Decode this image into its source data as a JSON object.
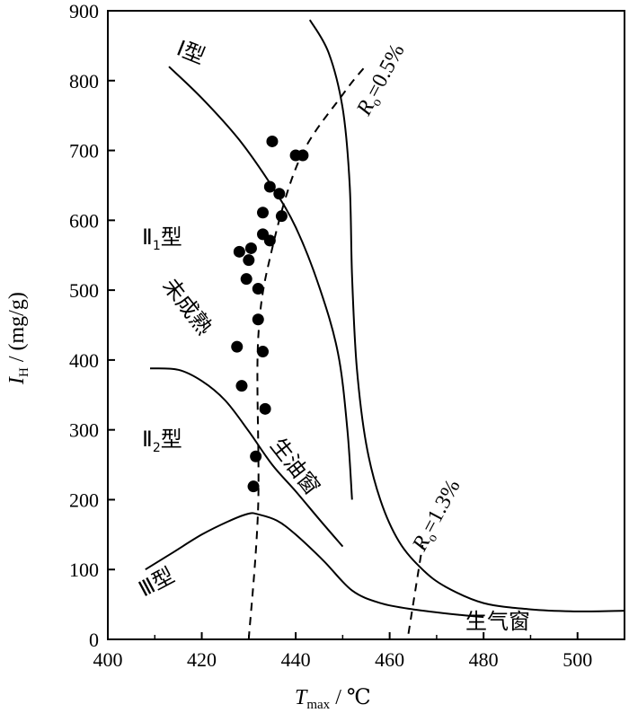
{
  "chart_data": {
    "type": "scatter",
    "title": "",
    "xlabel": {
      "symbol": "T",
      "subscript": "max",
      "unit": " / ℃"
    },
    "ylabel": {
      "symbol": "I",
      "subscript": "H",
      "unit": " / (mg/g)"
    },
    "xlim": [
      400,
      510
    ],
    "ylim": [
      0,
      900
    ],
    "x_ticks": [
      "400",
      "420",
      "440",
      "460",
      "480",
      "500"
    ],
    "y_ticks": [
      "0",
      "100",
      "200",
      "300",
      "400",
      "500",
      "600",
      "700",
      "800",
      "900"
    ],
    "grid": false,
    "series": [
      {
        "marker": "filled-circle",
        "points": [
          {
            "x": 435,
            "y": 713
          },
          {
            "x": 440,
            "y": 693
          },
          {
            "x": 441.5,
            "y": 693
          },
          {
            "x": 434.5,
            "y": 648
          },
          {
            "x": 436.5,
            "y": 638
          },
          {
            "x": 433,
            "y": 611
          },
          {
            "x": 437,
            "y": 606
          },
          {
            "x": 433,
            "y": 580
          },
          {
            "x": 434.5,
            "y": 571
          },
          {
            "x": 430.5,
            "y": 560
          },
          {
            "x": 428,
            "y": 555
          },
          {
            "x": 430,
            "y": 543
          },
          {
            "x": 429.5,
            "y": 516
          },
          {
            "x": 432,
            "y": 502
          },
          {
            "x": 432,
            "y": 458
          },
          {
            "x": 427.5,
            "y": 419
          },
          {
            "x": 433,
            "y": 412
          },
          {
            "x": 428.5,
            "y": 363
          },
          {
            "x": 433.5,
            "y": 330
          },
          {
            "x": 431.5,
            "y": 262
          },
          {
            "x": 431,
            "y": 219
          }
        ]
      }
    ],
    "type_boundaries": [
      {
        "name": "I-upper",
        "points": [
          [
            413,
            820
          ],
          [
            420,
            775
          ],
          [
            428,
            715
          ],
          [
            435,
            648
          ],
          [
            440,
            590
          ],
          [
            445,
            505
          ],
          [
            449,
            410
          ],
          [
            451,
            300
          ],
          [
            452,
            200
          ]
        ]
      },
      {
        "name": "I-II1-II2",
        "points": [
          [
            409,
            388
          ],
          [
            415,
            386
          ],
          [
            420,
            370
          ],
          [
            425,
            342
          ],
          [
            430,
            298
          ],
          [
            435,
            250
          ],
          [
            440,
            212
          ],
          [
            445,
            172
          ],
          [
            450,
            133
          ]
        ]
      },
      {
        "name": "III",
        "points": [
          [
            408,
            100
          ],
          [
            414,
            125
          ],
          [
            420,
            150
          ],
          [
            426,
            170
          ],
          [
            430,
            180
          ],
          [
            432,
            179
          ],
          [
            436,
            170
          ],
          [
            440,
            150
          ],
          [
            446,
            112
          ],
          [
            452,
            70
          ],
          [
            458,
            52
          ],
          [
            465,
            43
          ],
          [
            475,
            35
          ],
          [
            480,
            32
          ]
        ]
      },
      {
        "name": "oil-window-right",
        "points": [
          [
            443,
            887
          ],
          [
            447,
            840
          ],
          [
            450,
            760
          ],
          [
            451.5,
            650
          ],
          [
            452,
            520
          ],
          [
            453,
            390
          ],
          [
            455,
            280
          ],
          [
            458,
            200
          ],
          [
            462,
            140
          ],
          [
            467,
            100
          ],
          [
            472,
            75
          ],
          [
            480,
            52
          ],
          [
            490,
            43
          ],
          [
            500,
            40
          ],
          [
            510,
            41
          ]
        ]
      }
    ],
    "maturity_lines": [
      {
        "label_symbol": "R",
        "label_subscript": "o",
        "label_value": "=0.5%",
        "points": [
          [
            430,
            0
          ],
          [
            432,
            190
          ],
          [
            432,
            430
          ],
          [
            435,
            560
          ],
          [
            441,
            690
          ],
          [
            450,
            780
          ],
          [
            455,
            822
          ]
        ]
      },
      {
        "label_symbol": "R",
        "label_subscript": "o",
        "label_value": "=1.3%",
        "points": [
          [
            464,
            8
          ],
          [
            467,
            135
          ]
        ]
      }
    ],
    "annotations": {
      "type_I": {
        "main": "Ⅰ型"
      },
      "type_II1": {
        "main": "Ⅱ",
        "sub": "1",
        "suffix": "型"
      },
      "type_II2": {
        "main": "Ⅱ",
        "sub": "2",
        "suffix": "型"
      },
      "type_III": {
        "main": "Ⅲ型"
      },
      "immature": "未成熟",
      "oil_window": "生油窗",
      "gas_window": "生气窗"
    }
  }
}
